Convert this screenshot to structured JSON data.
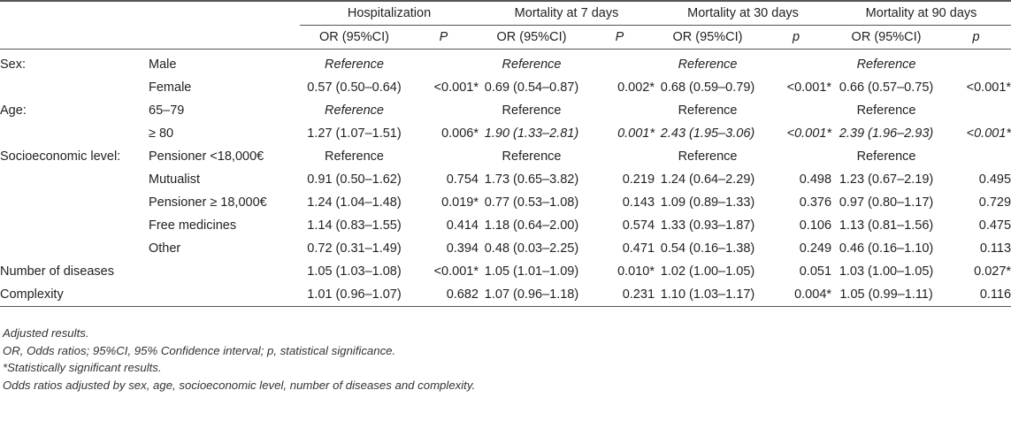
{
  "headers": {
    "groups": [
      "Hospitalization",
      "Mortality at 7 days",
      "Mortality at 30 days",
      "Mortality at 90 days"
    ],
    "or_label": "OR (95%CI)",
    "p_labels": [
      "P",
      "P",
      "p",
      "p"
    ]
  },
  "rows": [
    {
      "label": "Sex:",
      "sub": "Male",
      "cells": [
        "Reference",
        "",
        "Reference",
        "",
        "Reference",
        "",
        "Reference",
        ""
      ]
    },
    {
      "label": "",
      "sub": "Female",
      "cells": [
        "0.57 (0.50–0.64)",
        "<0.001*",
        "0.69 (0.54–0.87)",
        "0.002*",
        "0.68 (0.59–0.79)",
        "<0.001*",
        "0.66 (0.57–0.75)",
        "<0.001*"
      ]
    },
    {
      "label": "Age:",
      "sub": "65–79",
      "cells": [
        "Reference",
        "",
        "Reference",
        "",
        "Reference",
        "",
        "Reference",
        ""
      ]
    },
    {
      "label": "",
      "sub": "≥ 80",
      "cells": [
        "1.27 (1.07–1.51)",
        "0.006*",
        "1.90 (1.33–2.81)",
        "0.001*",
        "2.43 (1.95–3.06)",
        "<0.001*",
        "2.39 (1.96–2.93)",
        "<0.001*"
      ]
    },
    {
      "label": "Socioeconomic level:",
      "sub": "Pensioner <18,000€",
      "cells": [
        "Reference",
        "",
        "Reference",
        "",
        "Reference",
        "",
        "Reference",
        ""
      ]
    },
    {
      "label": "",
      "sub": "Mutualist",
      "cells": [
        "0.91 (0.50–1.62)",
        "0.754",
        "1.73 (0.65–3.82)",
        "0.219",
        "1.24 (0.64–2.29)",
        "0.498",
        "1.23 (0.67–2.19)",
        "0.495"
      ]
    },
    {
      "label": "",
      "sub": "Pensioner ≥ 18,000€",
      "cells": [
        "1.24 (1.04–1.48)",
        "0.019*",
        "0.77 (0.53–1.08)",
        "0.143",
        "1.09 (0.89–1.33)",
        "0.376",
        "0.97 (0.80–1.17)",
        "0.729"
      ]
    },
    {
      "label": "",
      "sub": "Free medicines",
      "cells": [
        "1.14 (0.83–1.55)",
        "0.414",
        "1.18 (0.64–2.00)",
        "0.574",
        "1.33 (0.93–1.87)",
        "0.106",
        "1.13 (0.81–1.56)",
        "0.475"
      ]
    },
    {
      "label": "",
      "sub": "Other",
      "cells": [
        "0.72 (0.31–1.49)",
        "0.394",
        "0.48 (0.03–2.25)",
        "0.471",
        "0.54 (0.16–1.38)",
        "0.249",
        "0.46 (0.16–1.10)",
        "0.113"
      ]
    },
    {
      "label": "Number of diseases",
      "sub": "",
      "cells": [
        "1.05 (1.03–1.08)",
        "<0.001*",
        "1.05 (1.01–1.09)",
        "0.010*",
        "1.02 (1.00–1.05)",
        "0.051",
        "1.03 (1.00–1.05)",
        "0.027*"
      ]
    },
    {
      "label": "Complexity",
      "sub": "",
      "cells": [
        "1.01 (0.96–1.07)",
        "0.682",
        "1.07 (0.96–1.18)",
        "0.231",
        "1.10 (1.03–1.17)",
        "0.004*",
        "1.05 (0.99–1.11)",
        "0.116"
      ]
    }
  ],
  "notes": [
    "Adjusted results.",
    "OR, Odds ratios; 95%CI, 95% Confidence interval; p, statistical significance.",
    "*Statistically significant results.",
    "Odds ratios adjusted by sex, age, socioeconomic level, number of diseases and complexity."
  ]
}
